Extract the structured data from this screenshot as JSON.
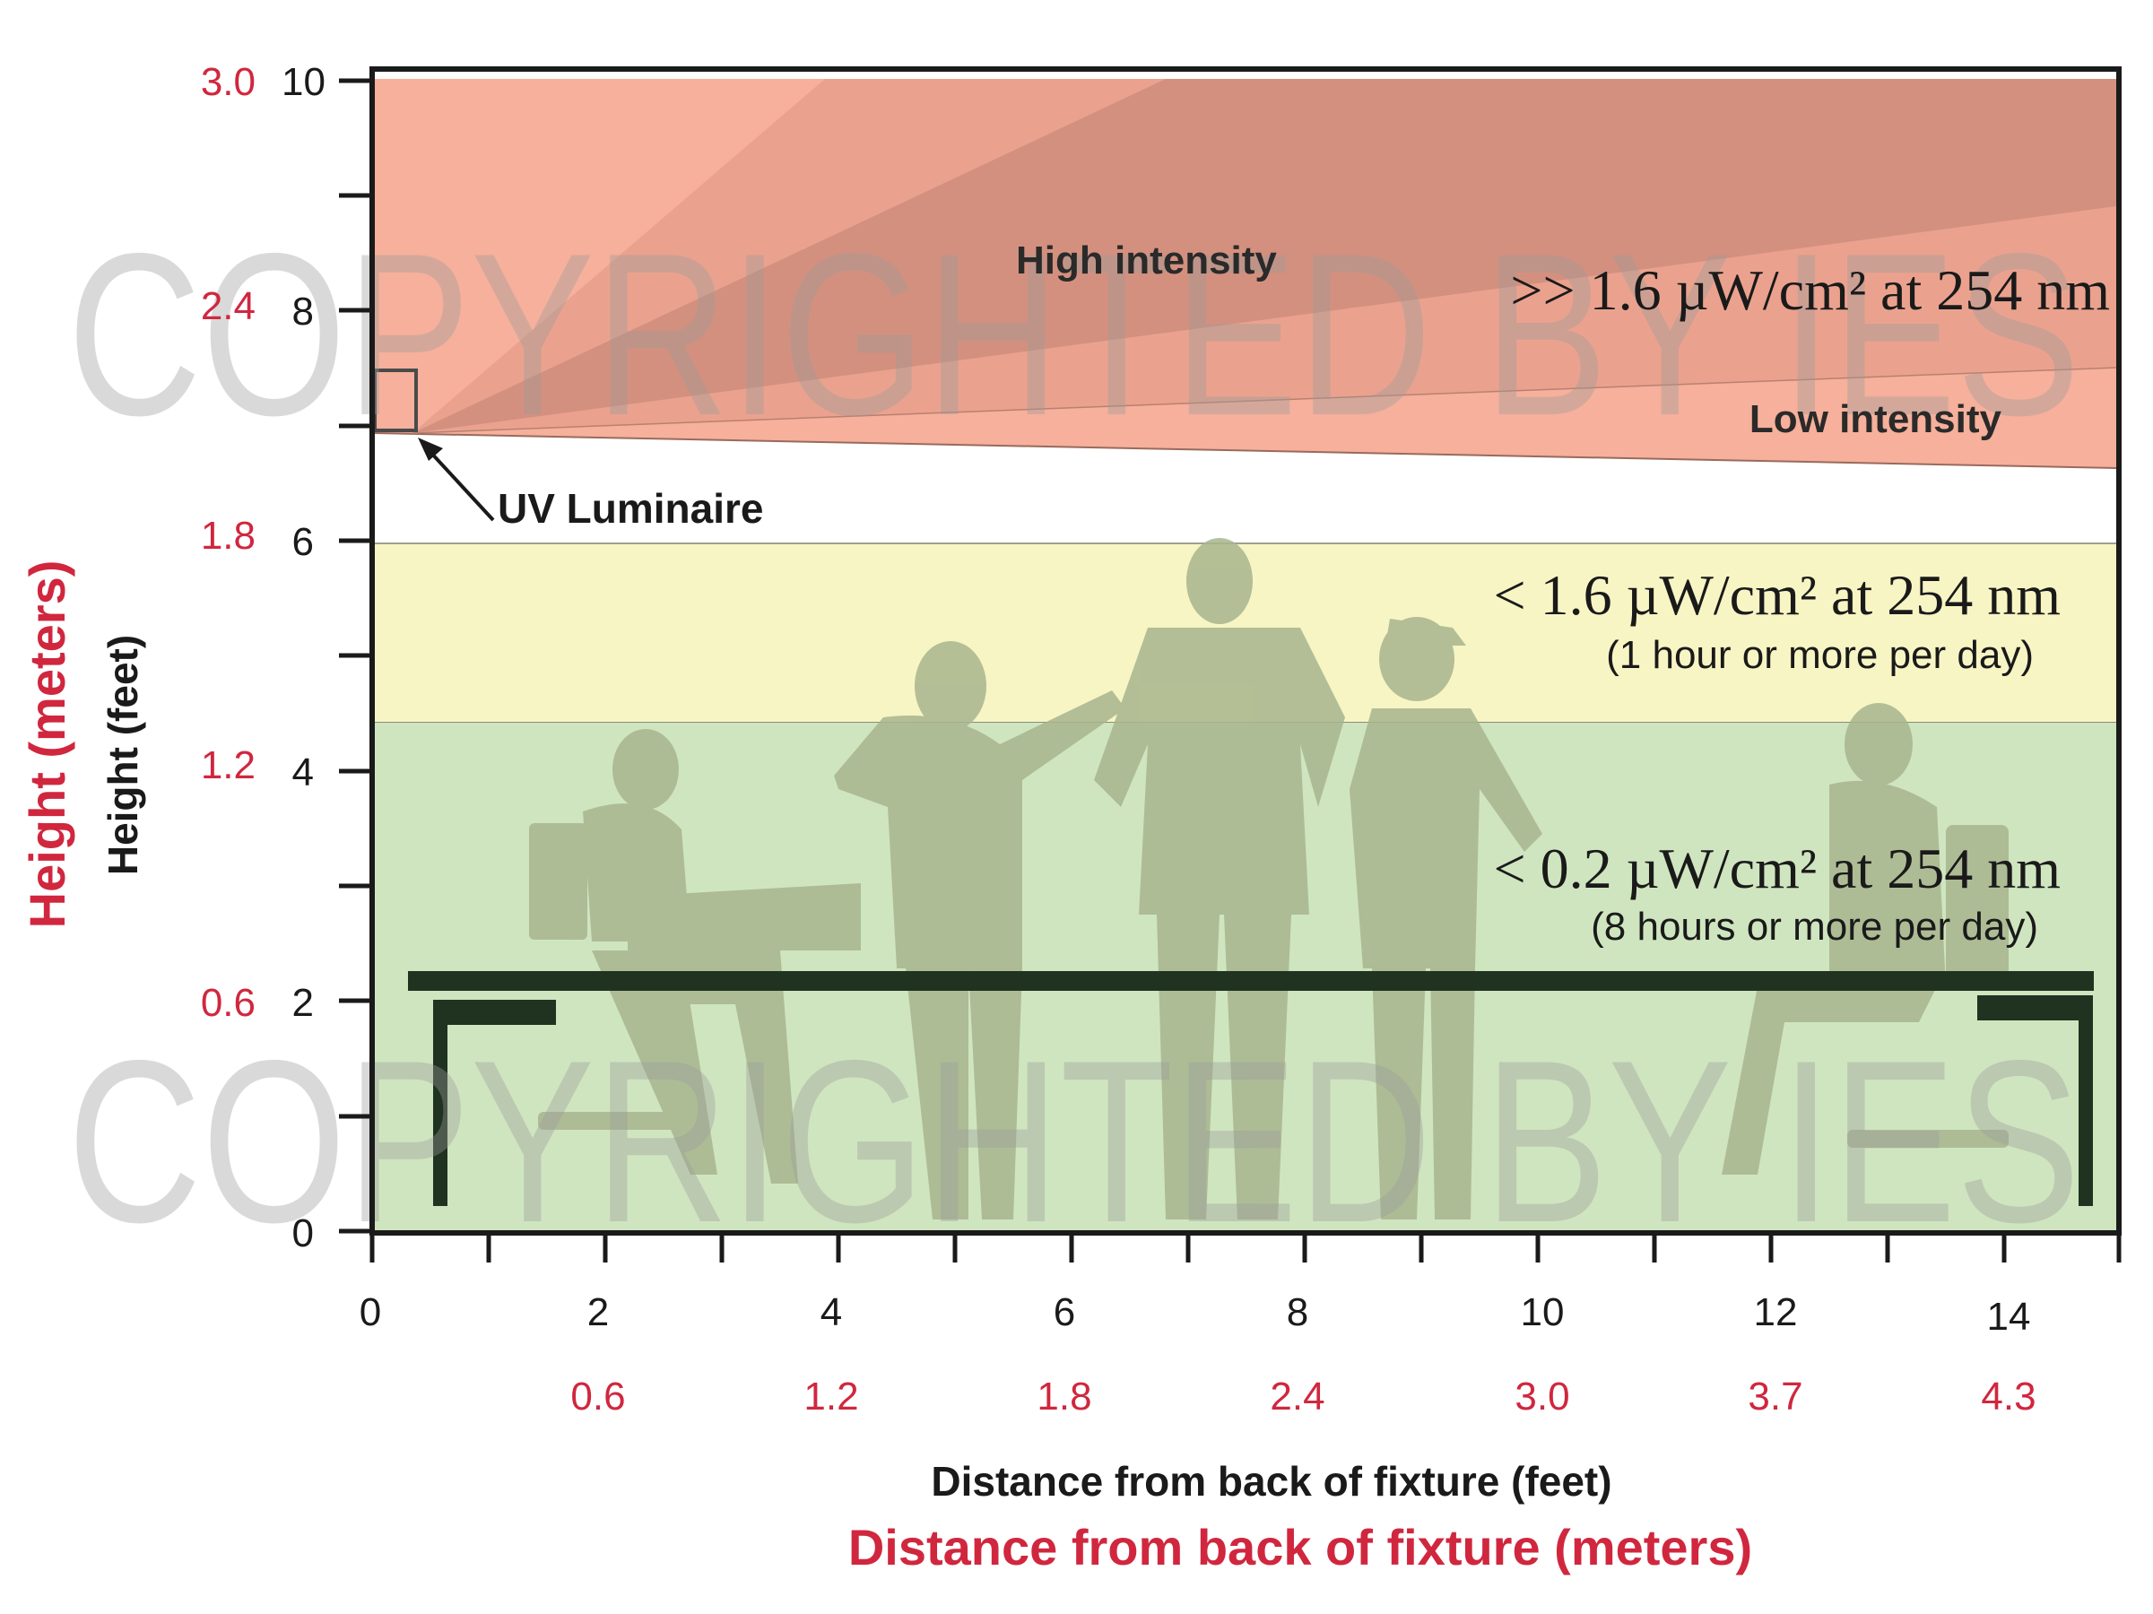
{
  "colors": {
    "red": "#d0273e",
    "high_zone": "#f6b09b",
    "yellow_zone": "#f7f5c4",
    "green_zone": "#cfe5bf",
    "silhouette": "#a8b58e",
    "desk": "#1f3320",
    "watermark": "#9a9a9a"
  },
  "y_axis": {
    "feet_label": "Height (feet)",
    "meters_label": "Height (meters)",
    "feet_ticks": [
      "0",
      "2",
      "4",
      "6",
      "8",
      "10"
    ],
    "meter_ticks": [
      "0.6",
      "1.2",
      "1.8",
      "2.4",
      "3.0"
    ]
  },
  "x_axis": {
    "feet_label": "Distance from back of fixture (feet)",
    "meters_label": "Distance from back of fixture (meters)",
    "feet_ticks": [
      "0",
      "2",
      "4",
      "6",
      "8",
      "10",
      "12",
      "14"
    ],
    "meter_ticks": [
      "0.6",
      "1.2",
      "1.8",
      "2.4",
      "3.0",
      "3.7",
      "4.3"
    ]
  },
  "zones": {
    "high_label": "High intensity",
    "high_value": ">> 1.6 µW/cm² at 254 nm",
    "low_label": "Low intensity",
    "fixture_label": "UV Luminaire",
    "yellow_value": "< 1.6 µW/cm² at 254 nm",
    "yellow_note": "(1 hour or more per day)",
    "green_value": "< 0.2 µW/cm² at 254 nm",
    "green_note": "(8 hours or more per day)"
  },
  "watermark": "COPYRIGHTED BY IES"
}
